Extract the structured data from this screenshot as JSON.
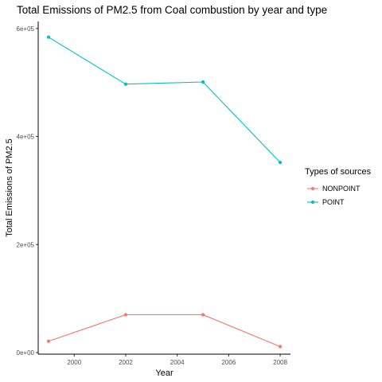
{
  "chart_data": {
    "type": "line",
    "title": "Total Emissions of PM2.5 from Coal combustion by year and type",
    "xlabel": "Year",
    "ylabel": "Total Emissions of PM2.5",
    "x": [
      1999,
      2002,
      2005,
      2008
    ],
    "xlim": [
      1998.6,
      2008.4
    ],
    "ylim": [
      -3000,
      613000
    ],
    "xticks": [
      2000,
      2002,
      2004,
      2006,
      2008
    ],
    "xtick_labels": [
      "2000",
      "2002",
      "2004",
      "2006",
      "2008"
    ],
    "yticks": [
      0,
      200000,
      400000,
      600000
    ],
    "ytick_labels": [
      "0e+00",
      "2e+05",
      "4e+05",
      "6e+05"
    ],
    "grid": false,
    "legend": {
      "title": "Types of sources",
      "placement": "right"
    },
    "series": [
      {
        "name": "NONPOINT",
        "color": "#F8766D",
        "values": [
          21000,
          70000,
          70000,
          11000
        ]
      },
      {
        "name": "POINT",
        "color": "#00BFC4",
        "values": [
          584000,
          497000,
          501000,
          352000
        ]
      }
    ]
  }
}
